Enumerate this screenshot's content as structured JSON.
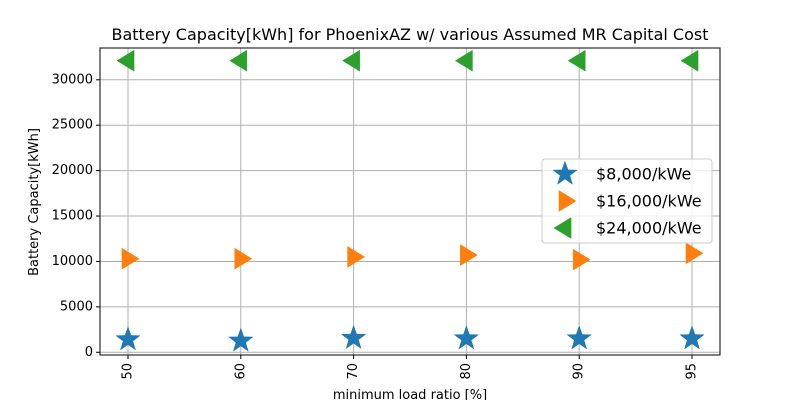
{
  "chart_data": {
    "type": "scatter",
    "title": "Battery Capacity[kWh] for PhoenixAZ w/ various Assumed MR Capital Cost",
    "xlabel": "minimum load ratio [%]",
    "ylabel": "Battery Capacity[kWh]",
    "categories": [
      "50",
      "60",
      "70",
      "80",
      "90",
      "95"
    ],
    "ylim": [
      -300,
      33500
    ],
    "yticks": [
      0,
      5000,
      10000,
      15000,
      20000,
      25000,
      30000
    ],
    "grid": true,
    "legend_position": "center-right",
    "series": [
      {
        "name": "$8,000/kWe",
        "marker": "star",
        "color": "#1f77b4",
        "values": [
          1400,
          1250,
          1550,
          1500,
          1500,
          1500
        ]
      },
      {
        "name": "$16,000/kWe",
        "marker": "triangle-right",
        "color": "#ff7f0e",
        "values": [
          10300,
          10300,
          10500,
          10700,
          10200,
          10900
        ]
      },
      {
        "name": "$24,000/kWe",
        "marker": "triangle-left",
        "color": "#2ca02c",
        "values": [
          32100,
          32100,
          32100,
          32100,
          32100,
          32100
        ]
      }
    ]
  }
}
